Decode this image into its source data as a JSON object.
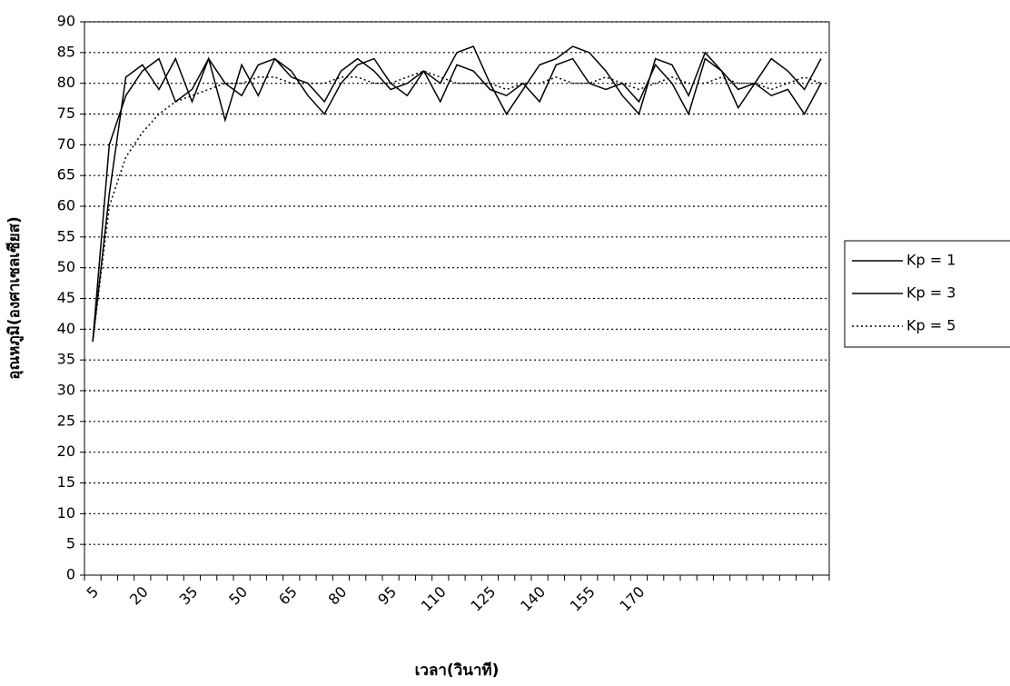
{
  "chart_data": {
    "type": "line",
    "x_label": "เวลา(วินาที)",
    "y_label": "อุณหภูมิ(องศาเซลเซียส)",
    "categories": [
      "5",
      null,
      null,
      "20",
      null,
      null,
      "35",
      null,
      null,
      "50",
      null,
      null,
      "65",
      null,
      null,
      "80",
      null,
      null,
      "95",
      null,
      null,
      "110",
      null,
      null,
      "125",
      null,
      null,
      "140",
      null,
      null,
      "155",
      null,
      null,
      "170",
      null,
      null,
      null,
      null,
      null,
      null,
      null,
      null,
      null,
      null,
      null
    ],
    "series": [
      {
        "name": "Kp = 1",
        "color": "#000000",
        "style": "solid",
        "values": [
          38,
          62,
          81,
          83,
          79,
          84,
          77,
          84,
          74,
          83,
          78,
          84,
          82,
          78,
          75,
          80,
          83,
          84,
          80,
          78,
          82,
          80,
          85,
          86,
          80,
          75,
          79,
          83,
          84,
          86,
          85,
          82,
          78,
          75,
          84,
          83,
          78,
          85,
          82,
          76,
          80,
          84,
          82,
          79,
          84
        ]
      },
      {
        "name": "Kp = 3",
        "color": "#000000",
        "style": "solid",
        "values": [
          38,
          70,
          78,
          82,
          84,
          77,
          79,
          84,
          80,
          78,
          83,
          84,
          81,
          80,
          77,
          82,
          84,
          82,
          79,
          80,
          82,
          77,
          83,
          82,
          79,
          78,
          80,
          77,
          83,
          84,
          80,
          79,
          80,
          77,
          83,
          80,
          75,
          84,
          82,
          79,
          80,
          78,
          79,
          75,
          80
        ]
      },
      {
        "name": "Kp = 5",
        "color": "#000000",
        "style": "dotted",
        "values": [
          38,
          60,
          68,
          72,
          75,
          77,
          78,
          79,
          80,
          80,
          81,
          81,
          80,
          80,
          80,
          81,
          81,
          80,
          80,
          81,
          82,
          81,
          80,
          80,
          80,
          79,
          80,
          80,
          81,
          80,
          80,
          81,
          80,
          79,
          80,
          81,
          80,
          80,
          81,
          80,
          80,
          79,
          80,
          81,
          80
        ]
      }
    ],
    "ylim": [
      0,
      90
    ],
    "yticks": [
      0,
      5,
      10,
      15,
      20,
      25,
      30,
      35,
      40,
      45,
      50,
      55,
      60,
      65,
      70,
      75,
      80,
      85,
      90
    ],
    "grid": true,
    "legend": "right"
  }
}
